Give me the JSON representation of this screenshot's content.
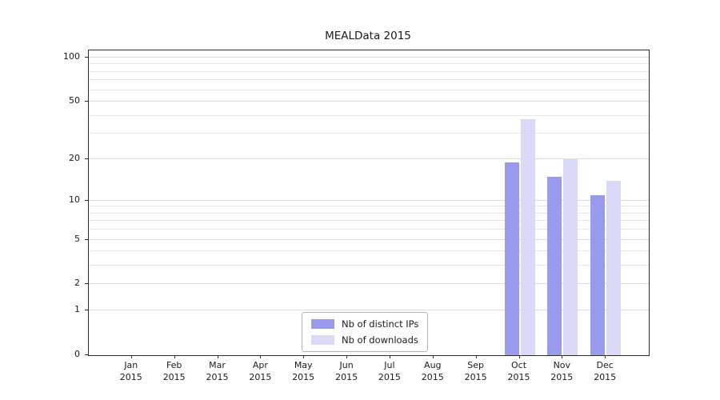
{
  "chart_data": {
    "type": "bar",
    "title": "MEALData 2015",
    "x": {
      "categories": [
        "Jan",
        "Feb",
        "Mar",
        "Apr",
        "May",
        "Jun",
        "Jul",
        "Aug",
        "Sep",
        "Oct",
        "Nov",
        "Dec"
      ],
      "year": "2015"
    },
    "y": {
      "scale": "log1p",
      "ticks": [
        0,
        1,
        2,
        5,
        10,
        20,
        50,
        100
      ],
      "minor_gridlines": [
        1,
        2,
        3,
        4,
        5,
        6,
        7,
        8,
        9,
        10,
        20,
        30,
        40,
        50,
        60,
        70,
        80,
        90,
        100
      ],
      "ylim": [
        0,
        110
      ]
    },
    "series": [
      {
        "name": "Nb of distinct IPs",
        "color": "#9b9bee",
        "values": [
          0,
          0,
          0,
          0,
          0,
          0,
          0,
          0,
          0,
          19,
          15,
          11
        ]
      },
      {
        "name": "Nb of downloads",
        "color": "#dadaf8",
        "values": [
          0,
          0,
          0,
          0,
          0,
          0,
          0,
          0,
          0,
          38,
          20,
          14
        ]
      }
    ],
    "legend": {
      "position": "lower center",
      "entries": [
        "Nb of distinct IPs",
        "Nb of downloads"
      ]
    },
    "grid": true
  }
}
